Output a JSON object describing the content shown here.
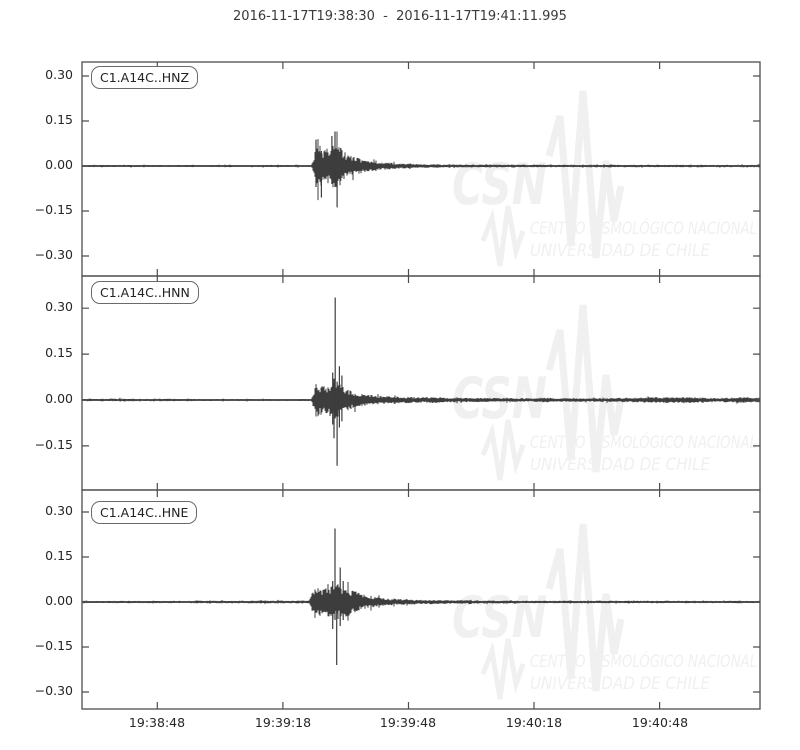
{
  "title": "2016-11-17T19:38:30  -  2016-11-17T19:41:11.995",
  "watermark": {
    "logo": "CSN",
    "line1": "CENTRO SISMOLÓGICO NACIONAL",
    "line2": "UNIVERSIDAD DE CHILE",
    "color": "#f0f0f0"
  },
  "colors": {
    "trace": "#3d3d3d",
    "frame": "#4d4d4d",
    "tick_text": "#262626",
    "background": "#ffffff"
  },
  "chart_data": {
    "type": "line",
    "kind": "seismogram-3-component",
    "start_time": "2016-11-17T19:38:30",
    "end_time": "2016-11-17T19:41:11.995",
    "duration_s": 161.995,
    "xlabel": "",
    "ylabel": "",
    "grid": false,
    "xticks": [
      {
        "t": 18,
        "label": "19:38:48"
      },
      {
        "t": 48,
        "label": "19:39:18"
      },
      {
        "t": 78,
        "label": "19:39:48"
      },
      {
        "t": 108,
        "label": "19:40:18"
      },
      {
        "t": 138,
        "label": "19:40:48"
      }
    ],
    "subplots": [
      {
        "id": "C1.A14C..HNZ",
        "ylim": [
          -0.37,
          0.35
        ],
        "yticks": [
          {
            "v": 0.3,
            "label": "0.30"
          },
          {
            "v": 0.15,
            "label": "0.15"
          },
          {
            "v": 0.0,
            "label": "0.00"
          },
          {
            "v": -0.15,
            "label": "−0.15"
          },
          {
            "v": -0.3,
            "label": "−0.30"
          }
        ],
        "event_onset_s": 55.4,
        "peak_amplitude": 0.115,
        "min_amplitude": -0.138,
        "envelope": [
          [
            0,
            0.0035
          ],
          [
            54.8,
            0.0035
          ],
          [
            55.3,
            0.02
          ],
          [
            55.9,
            0.075
          ],
          [
            56.6,
            0.08
          ],
          [
            57.6,
            0.055
          ],
          [
            58.8,
            0.06
          ],
          [
            59.8,
            0.075
          ],
          [
            60.6,
            0.085
          ],
          [
            61.4,
            0.07
          ],
          [
            62.4,
            0.05
          ],
          [
            63.5,
            0.038
          ],
          [
            65.5,
            0.028
          ],
          [
            68,
            0.02
          ],
          [
            71,
            0.014
          ],
          [
            75,
            0.01
          ],
          [
            80,
            0.007
          ],
          [
            88,
            0.0055
          ],
          [
            100,
            0.0045
          ],
          [
            120,
            0.004
          ],
          [
            162,
            0.004
          ]
        ],
        "spikes": [
          [
            55.9,
            0.088,
            0.07
          ],
          [
            57.2,
            0.05,
            0.105
          ],
          [
            59.7,
            0.1,
            0.06
          ],
          [
            60.45,
            0.115,
            0.07
          ],
          [
            60.95,
            0.05,
            0.138
          ],
          [
            61.8,
            0.06,
            0.05
          ]
        ]
      },
      {
        "id": "C1.A14C..HNN",
        "ylim": [
          -0.29,
          0.4
        ],
        "yticks": [
          {
            "v": 0.3,
            "label": "0.30"
          },
          {
            "v": 0.15,
            "label": "0.15"
          },
          {
            "v": 0.0,
            "label": "0.00"
          },
          {
            "v": -0.15,
            "label": "−0.15"
          }
        ],
        "event_onset_s": 55.4,
        "peak_amplitude": 0.335,
        "min_amplitude": -0.215,
        "envelope": [
          [
            0,
            0.0035
          ],
          [
            2,
            0.0045
          ],
          [
            4,
            0.0035
          ],
          [
            8,
            0.005
          ],
          [
            11,
            0.0045
          ],
          [
            14,
            0.0035
          ],
          [
            20,
            0.004
          ],
          [
            30,
            0.0035
          ],
          [
            54.8,
            0.0035
          ],
          [
            55.4,
            0.03
          ],
          [
            56,
            0.06
          ],
          [
            57,
            0.05
          ],
          [
            58.2,
            0.045
          ],
          [
            59.4,
            0.055
          ],
          [
            60.4,
            0.065
          ],
          [
            61.3,
            0.06
          ],
          [
            62.3,
            0.045
          ],
          [
            63.5,
            0.035
          ],
          [
            65.5,
            0.025
          ],
          [
            68,
            0.018
          ],
          [
            71,
            0.014
          ],
          [
            76,
            0.011
          ],
          [
            82,
            0.009
          ],
          [
            84.5,
            0.011
          ],
          [
            86,
            0.008
          ],
          [
            95,
            0.007
          ],
          [
            108,
            0.006
          ],
          [
            110.5,
            0.009
          ],
          [
            113,
            0.006
          ],
          [
            125,
            0.006
          ],
          [
            133,
            0.008
          ],
          [
            137,
            0.01
          ],
          [
            141,
            0.009
          ],
          [
            146,
            0.01
          ],
          [
            149,
            0.007
          ],
          [
            155,
            0.008
          ],
          [
            158,
            0.01
          ],
          [
            160,
            0.008
          ],
          [
            162,
            0.008
          ]
        ],
        "spikes": [
          [
            59.9,
            0.09,
            0.08
          ],
          [
            60.2,
            0.07,
            0.125
          ],
          [
            60.5,
            0.335,
            0.06
          ],
          [
            60.95,
            0.06,
            0.215
          ],
          [
            61.5,
            0.11,
            0.09
          ],
          [
            62.1,
            0.08,
            0.07
          ]
        ]
      },
      {
        "id": "C1.A14C..HNE",
        "ylim": [
          -0.36,
          0.37
        ],
        "yticks": [
          {
            "v": 0.3,
            "label": "0.30"
          },
          {
            "v": 0.15,
            "label": "0.15"
          },
          {
            "v": 0.0,
            "label": "0.00"
          },
          {
            "v": -0.15,
            "label": "−0.15"
          },
          {
            "v": -0.3,
            "label": "−0.30"
          }
        ],
        "event_onset_s": 54.9,
        "peak_amplitude": 0.245,
        "min_amplitude": -0.21,
        "envelope": [
          [
            0,
            0.0035
          ],
          [
            25,
            0.004
          ],
          [
            40,
            0.0045
          ],
          [
            50,
            0.005
          ],
          [
            54.3,
            0.005
          ],
          [
            54.9,
            0.035
          ],
          [
            55.6,
            0.055
          ],
          [
            56.6,
            0.05
          ],
          [
            57.8,
            0.045
          ],
          [
            59,
            0.05
          ],
          [
            60.2,
            0.06
          ],
          [
            61.2,
            0.06
          ],
          [
            62.3,
            0.055
          ],
          [
            63.6,
            0.048
          ],
          [
            65,
            0.038
          ],
          [
            66.5,
            0.028
          ],
          [
            68.5,
            0.02
          ],
          [
            71,
            0.015
          ],
          [
            74,
            0.011
          ],
          [
            78,
            0.009
          ],
          [
            84,
            0.007
          ],
          [
            92,
            0.0055
          ],
          [
            105,
            0.0045
          ],
          [
            130,
            0.004
          ],
          [
            162,
            0.004
          ]
        ],
        "spikes": [
          [
            59.9,
            0.07,
            0.09
          ],
          [
            60.45,
            0.245,
            0.06
          ],
          [
            60.85,
            0.05,
            0.21
          ],
          [
            61.7,
            0.115,
            0.08
          ],
          [
            62.4,
            0.07,
            0.06
          ]
        ]
      }
    ]
  }
}
